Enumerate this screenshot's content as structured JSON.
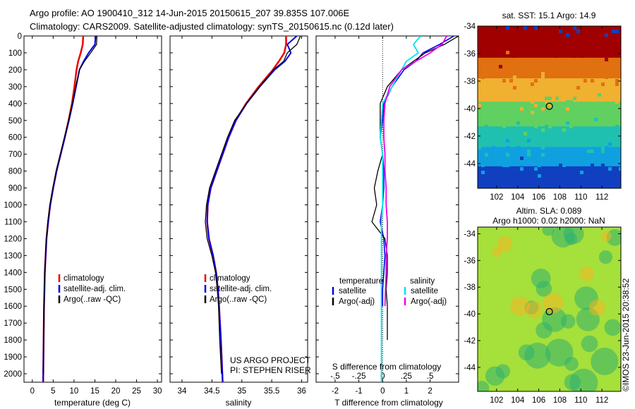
{
  "title": {
    "line1": "Argo profile: AO 1900410_312 14-Jun-2015 20150615_207 39.835S 107.006E",
    "line2": "Climatology: CARS2009. Satellite-adjusted climatology: synTS_20150615.nc (0.12d later)"
  },
  "credits": {
    "project": "US ARGO PROJECT",
    "pi": "PI: STEPHEN RISER",
    "stamp": "©IMOS 23-Jun-2015 20:38:52"
  },
  "colors": {
    "climatology": "#ee0000",
    "satellite": "#0000ee",
    "argo": "#000000",
    "sal_satellite": "#00e5ee",
    "sal_argo": "#ee00ee"
  },
  "chart_data": [
    {
      "type": "line",
      "id": "temperature",
      "xlabel": "temperature (deg C)",
      "ylabel": "",
      "xlim": [
        -2,
        31
      ],
      "ylim": [
        2050,
        0
      ],
      "xticks": [
        0,
        5,
        10,
        15,
        20,
        25,
        30
      ],
      "yticks": [
        0,
        100,
        200,
        300,
        400,
        500,
        600,
        700,
        800,
        900,
        1000,
        1100,
        1200,
        1300,
        1400,
        1500,
        1600,
        1700,
        1800,
        1900,
        2000
      ],
      "legend": [
        "climatology",
        "satellite-adj. clim.",
        "Argo(..raw -QC)"
      ],
      "legend_position": "lower-right",
      "series": [
        {
          "name": "climatology",
          "color": "#ee0000",
          "width": 2.5,
          "x": [
            12.2,
            12.1,
            11.6,
            11.0,
            10.6,
            10.1,
            9.5,
            8.7,
            7.8,
            6.8,
            5.8,
            5.0,
            4.3,
            3.8,
            3.4,
            3.2,
            3.0,
            2.9,
            2.8,
            2.7,
            2.6
          ],
          "y": [
            0,
            50,
            100,
            150,
            200,
            300,
            400,
            500,
            600,
            700,
            800,
            900,
            1000,
            1100,
            1200,
            1300,
            1400,
            1500,
            1600,
            1800,
            2050
          ]
        },
        {
          "name": "satellite-adj. clim.",
          "color": "#0000ee",
          "width": 2,
          "x": [
            15.2,
            15.0,
            13.5,
            12.3,
            11.3,
            10.5,
            9.7,
            8.8,
            7.8,
            6.8,
            5.8,
            5.0,
            4.3,
            3.8,
            3.4,
            3.2,
            3.0,
            2.9,
            2.8,
            2.7,
            2.6
          ],
          "y": [
            0,
            50,
            100,
            150,
            200,
            300,
            400,
            500,
            600,
            700,
            800,
            900,
            1000,
            1100,
            1200,
            1300,
            1400,
            1500,
            1600,
            1800,
            2050
          ]
        },
        {
          "name": "Argo(..raw -QC)",
          "color": "#000000",
          "width": 1.3,
          "x": [
            15.5,
            15.4,
            14.0,
            12.5,
            11.3,
            10.4,
            9.6,
            8.7,
            7.7,
            6.7,
            5.7,
            4.9,
            4.2,
            3.7,
            3.35,
            3.15,
            3.0,
            2.9,
            2.8,
            2.7,
            2.65
          ],
          "y": [
            0,
            50,
            100,
            150,
            200,
            300,
            400,
            500,
            600,
            700,
            800,
            900,
            1000,
            1100,
            1200,
            1300,
            1400,
            1500,
            1600,
            1800,
            2000
          ]
        }
      ]
    },
    {
      "type": "line",
      "id": "salinity",
      "xlabel": "salinity",
      "ylabel": "",
      "xlim": [
        33.8,
        36.1
      ],
      "ylim": [
        2050,
        0
      ],
      "xticks": [
        34,
        34.5,
        35,
        35.5,
        36
      ],
      "yticks": [],
      "legend": [
        "climatology",
        "satellite-adj. clim.",
        "Argo(..raw -QC)"
      ],
      "legend_position": "lower-right",
      "series": [
        {
          "name": "climatology",
          "color": "#ee0000",
          "width": 2.5,
          "x": [
            35.74,
            35.74,
            35.71,
            35.62,
            35.52,
            35.28,
            35.07,
            34.9,
            34.78,
            34.68,
            34.58,
            34.48,
            34.43,
            34.42,
            34.45,
            34.52,
            34.57,
            34.6,
            34.62,
            34.65,
            34.68
          ],
          "y": [
            0,
            50,
            100,
            150,
            200,
            300,
            400,
            500,
            600,
            700,
            800,
            900,
            1000,
            1100,
            1200,
            1300,
            1400,
            1500,
            1600,
            1800,
            2050
          ]
        },
        {
          "name": "satellite-adj. clim.",
          "color": "#0000ee",
          "width": 2,
          "x": [
            35.92,
            35.76,
            35.82,
            35.72,
            35.55,
            35.3,
            35.08,
            34.9,
            34.78,
            34.68,
            34.58,
            34.48,
            34.43,
            34.42,
            34.45,
            34.52,
            34.57,
            34.6,
            34.62,
            34.65,
            34.68
          ],
          "y": [
            0,
            50,
            100,
            150,
            200,
            300,
            400,
            500,
            600,
            700,
            800,
            900,
            1000,
            1100,
            1200,
            1300,
            1400,
            1500,
            1600,
            1800,
            2050
          ]
        },
        {
          "name": "Argo(..raw -QC)",
          "color": "#000000",
          "width": 1.3,
          "x": [
            35.98,
            35.92,
            35.76,
            35.7,
            35.53,
            35.3,
            35.08,
            34.88,
            34.76,
            34.66,
            34.56,
            34.46,
            34.41,
            34.39,
            34.42,
            34.5,
            34.56,
            34.59,
            34.61,
            34.63,
            34.66
          ],
          "y": [
            0,
            50,
            100,
            150,
            200,
            300,
            400,
            500,
            600,
            700,
            800,
            900,
            1000,
            1100,
            1200,
            1300,
            1400,
            1500,
            1600,
            1800,
            2000
          ]
        }
      ]
    },
    {
      "type": "line",
      "id": "difference",
      "xlabel": "T difference from climatology",
      "xlabel_top": "S difference from climatology",
      "xlim": [
        -2.8,
        3.2
      ],
      "ylim": [
        2050,
        0
      ],
      "xticks": [
        -2,
        -1,
        0,
        1,
        2
      ],
      "xticks_top": [
        -0.5,
        -0.25,
        0,
        0.25,
        0.5
      ],
      "yticks": [],
      "legend": {
        "temperature_header": "temperature",
        "salinity_header": "salinity",
        "items": [
          "satellite",
          "Argo(-adj)",
          "satellite",
          "Argo(-adj)"
        ]
      },
      "legend_position": "lower-right",
      "series": [
        {
          "name": "satellite",
          "group": "temperature",
          "color": "#0000ee",
          "width": 1.6,
          "x": [
            3.0,
            2.4,
            1.7,
            1.4,
            0.9,
            0.4,
            0.05,
            0.0,
            -0.1,
            0.0,
            0.05,
            0.05,
            0.0,
            -0.1,
            0.05,
            0.1,
            0.05,
            0.0,
            0.0
          ],
          "y": [
            0,
            50,
            100,
            150,
            200,
            300,
            400,
            500,
            600,
            700,
            800,
            900,
            1000,
            1100,
            1200,
            1300,
            1400,
            1500,
            1600
          ]
        },
        {
          "name": "Argo(-adj)",
          "group": "temperature",
          "color": "#000000",
          "width": 1.3,
          "x": [
            3.2,
            2.6,
            1.8,
            1.3,
            0.8,
            0.2,
            -0.1,
            -0.1,
            -0.1,
            0.0,
            -0.2,
            -0.35,
            -0.25,
            -0.45,
            0.1,
            0.2,
            0.2,
            0.15,
            0.2,
            0.2
          ],
          "y": [
            0,
            50,
            100,
            150,
            200,
            300,
            400,
            500,
            600,
            700,
            800,
            900,
            1000,
            1100,
            1200,
            1300,
            1400,
            1500,
            1600,
            1800
          ]
        },
        {
          "name": "satellite",
          "group": "salinity",
          "color": "#00e5ee",
          "width": 1.8,
          "x": [
            1.6,
            1.3,
            1.5,
            1.0,
            0.8,
            0.4,
            0.0,
            -0.05,
            -0.1,
            0.0,
            0.0,
            0.0,
            0.0,
            -0.05,
            -0.05,
            -0.05,
            -0.05,
            -0.05,
            -0.05,
            -0.05,
            -0.05
          ],
          "y": [
            0,
            50,
            100,
            150,
            200,
            300,
            400,
            500,
            600,
            700,
            800,
            900,
            1000,
            1100,
            1200,
            1300,
            1400,
            1500,
            1600,
            1800,
            2050
          ]
        },
        {
          "name": "Argo(-adj)",
          "group": "salinity",
          "color": "#ee00ee",
          "width": 1.8,
          "x": [
            2.7,
            2.5,
            2.0,
            1.4,
            0.8,
            0.3,
            0.1,
            0.05,
            0.05,
            0.1,
            0.1,
            0.15,
            0.15,
            0.2,
            0.2,
            0.15,
            0.15,
            0.1
          ],
          "y": [
            0,
            50,
            100,
            150,
            200,
            300,
            400,
            500,
            600,
            700,
            800,
            900,
            1000,
            1100,
            1200,
            1300,
            1400,
            1600
          ]
        }
      ]
    },
    {
      "type": "heatmap",
      "id": "sst_map",
      "title": "sat. SST: 15.1  Argo: 14.9",
      "xlim": [
        100.2,
        113.8
      ],
      "ylim": [
        -45.8,
        -34
      ],
      "xticks": [
        102,
        104,
        106,
        108,
        110,
        112
      ],
      "yticks": [
        -34,
        -36,
        -38,
        -40,
        -42,
        -44
      ],
      "marker": {
        "lon": 107.006,
        "lat": -39.835
      },
      "color_bands": [
        {
          "lat_from": -34,
          "lat_to": -36.3,
          "color": "#a00000"
        },
        {
          "lat_from": -36.3,
          "lat_to": -37.8,
          "color": "#e07010"
        },
        {
          "lat_from": -37.8,
          "lat_to": -39.5,
          "color": "#f0b030"
        },
        {
          "lat_from": -39.5,
          "lat_to": -41.3,
          "color": "#60d060"
        },
        {
          "lat_from": -41.3,
          "lat_to": -42.8,
          "color": "#20c0b0"
        },
        {
          "lat_from": -42.8,
          "lat_to": -44.2,
          "color": "#10a0e0"
        },
        {
          "lat_from": -44.2,
          "lat_to": -45.8,
          "color": "#1040c0"
        }
      ]
    },
    {
      "type": "heatmap",
      "id": "sla_map",
      "title_line1": "Altim. SLA: 0.089",
      "title_line2": "Argo h1000: 0.02  h2000: NaN",
      "xlim": [
        100.2,
        113.8
      ],
      "ylim": [
        -45.8,
        -33.5
      ],
      "xticks": [
        102,
        104,
        106,
        108,
        110,
        112
      ],
      "yticks": [
        -34,
        -36,
        -38,
        -40,
        -42,
        -44
      ],
      "marker": {
        "lon": 107.006,
        "lat": -39.835
      },
      "colors": {
        "base": "#a6e03a",
        "low": "#30b070",
        "high": "#ffb020"
      }
    }
  ]
}
